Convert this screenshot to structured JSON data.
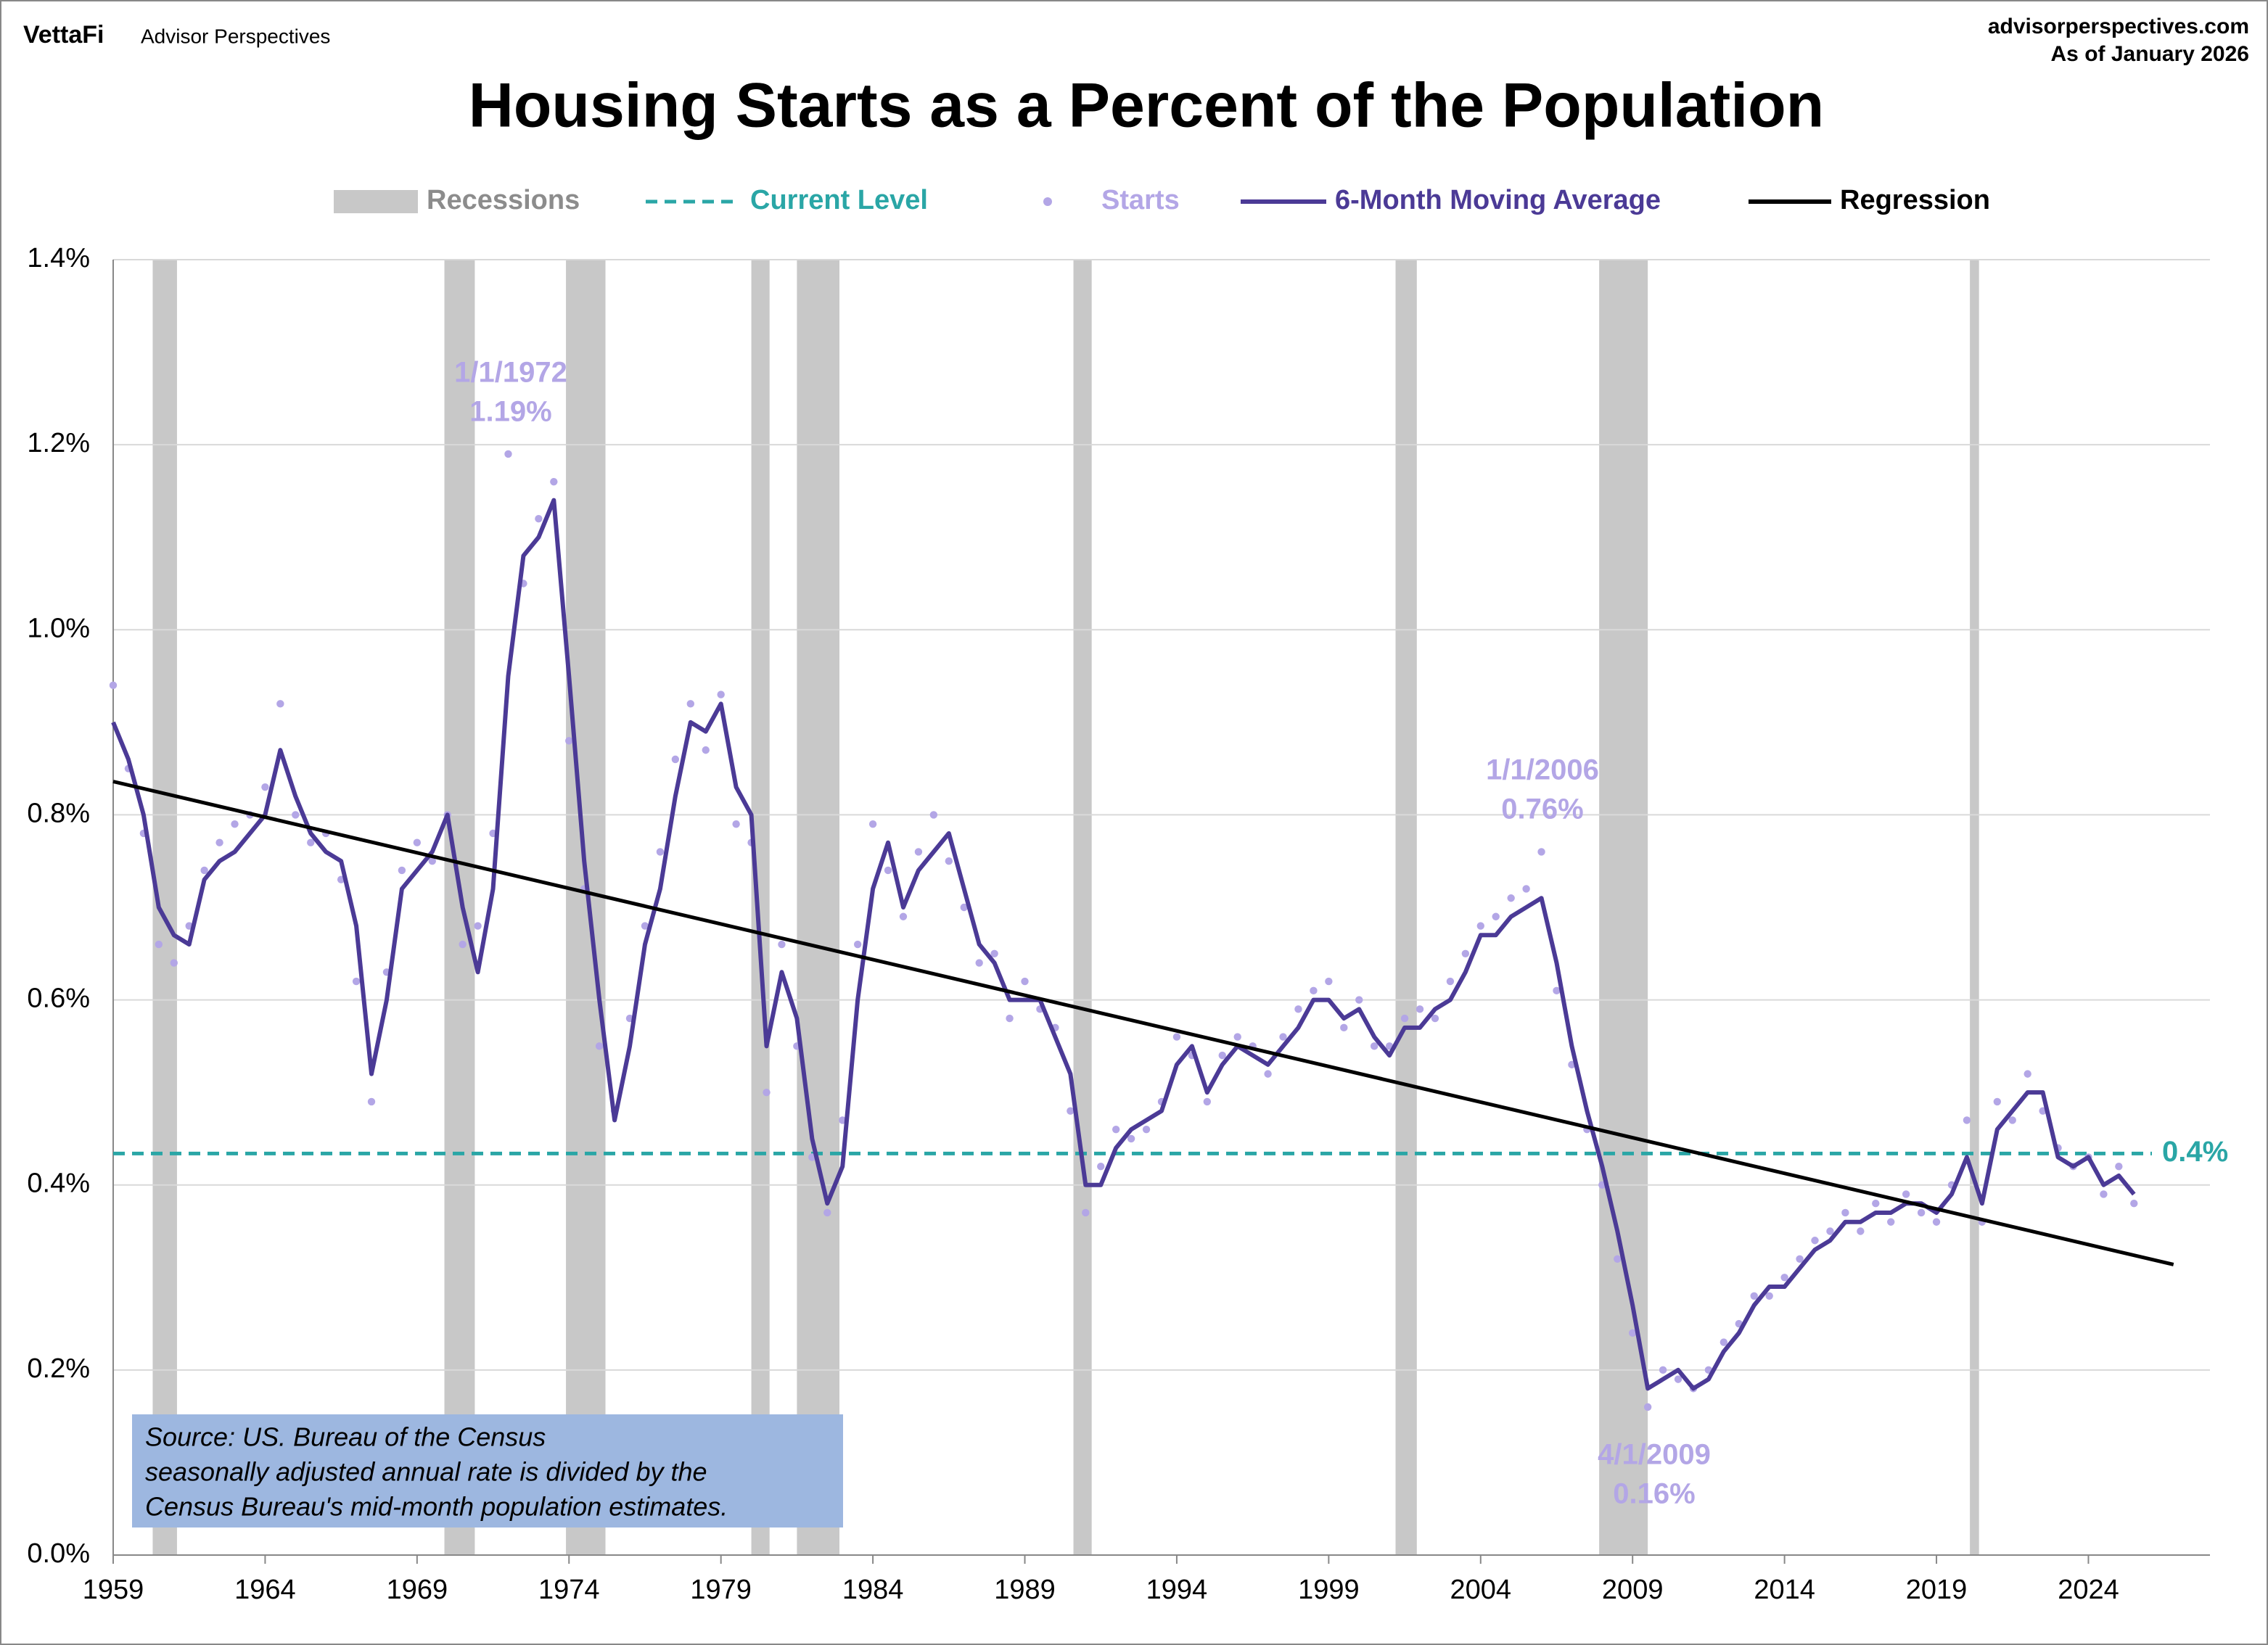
{
  "header": {
    "brand": "VettaFi",
    "site_name": "Advisor Perspectives",
    "url": "advisorperspectives.com",
    "as_of": "As of January 2026"
  },
  "chart_data": {
    "type": "line",
    "title": "Housing Starts as a Percent of the Population",
    "x": [
      1959,
      1959.5,
      1960,
      1960.5,
      1961,
      1961.5,
      1962,
      1962.5,
      1963,
      1963.5,
      1964,
      1964.5,
      1965,
      1965.5,
      1966,
      1966.5,
      1967,
      1967.5,
      1968,
      1968.5,
      1969,
      1969.5,
      1970,
      1970.5,
      1971,
      1971.5,
      1972,
      1972.5,
      1973,
      1973.5,
      1974,
      1974.5,
      1975,
      1975.5,
      1976,
      1976.5,
      1977,
      1977.5,
      1978,
      1978.5,
      1979,
      1979.5,
      1980,
      1980.5,
      1981,
      1981.5,
      1982,
      1982.5,
      1983,
      1983.5,
      1984,
      1984.5,
      1985,
      1985.5,
      1986,
      1986.5,
      1987,
      1987.5,
      1988,
      1988.5,
      1989,
      1989.5,
      1990,
      1990.5,
      1991,
      1991.5,
      1992,
      1992.5,
      1993,
      1993.5,
      1994,
      1994.5,
      1995,
      1995.5,
      1996,
      1996.5,
      1997,
      1997.5,
      1998,
      1998.5,
      1999,
      1999.5,
      2000,
      2000.5,
      2001,
      2001.5,
      2002,
      2002.5,
      2003,
      2003.5,
      2004,
      2004.5,
      2005,
      2005.5,
      2006,
      2006.5,
      2007,
      2007.5,
      2008,
      2008.5,
      2009,
      2009.5,
      2010,
      2010.5,
      2011,
      2011.5,
      2012,
      2012.5,
      2013,
      2013.5,
      2014,
      2014.5,
      2015,
      2015.5,
      2016,
      2016.5,
      2017,
      2017.5,
      2018,
      2018.5,
      2019,
      2019.5,
      2020,
      2020.5,
      2021,
      2021.5,
      2022,
      2022.5,
      2023,
      2023.5,
      2024,
      2024.5,
      2025,
      2025.5
    ],
    "series": [
      {
        "name": "Starts",
        "color": "#b3a6e6",
        "marker": "dot",
        "values": [
          0.94,
          0.85,
          0.78,
          0.66,
          0.64,
          0.68,
          0.74,
          0.77,
          0.79,
          0.8,
          0.83,
          0.92,
          0.8,
          0.77,
          0.78,
          0.73,
          0.62,
          0.49,
          0.63,
          0.74,
          0.77,
          0.75,
          0.8,
          0.66,
          0.68,
          0.78,
          1.19,
          1.05,
          1.12,
          1.16,
          0.88,
          0.72,
          0.55,
          0.48,
          0.58,
          0.68,
          0.76,
          0.86,
          0.92,
          0.87,
          0.93,
          0.79,
          0.77,
          0.5,
          0.66,
          0.55,
          0.43,
          0.37,
          0.47,
          0.66,
          0.79,
          0.74,
          0.69,
          0.76,
          0.8,
          0.75,
          0.7,
          0.64,
          0.65,
          0.58,
          0.62,
          0.59,
          0.57,
          0.48,
          0.37,
          0.42,
          0.46,
          0.45,
          0.46,
          0.49,
          0.56,
          0.54,
          0.49,
          0.54,
          0.56,
          0.55,
          0.52,
          0.56,
          0.59,
          0.61,
          0.62,
          0.57,
          0.6,
          0.55,
          0.55,
          0.58,
          0.59,
          0.58,
          0.62,
          0.65,
          0.68,
          0.69,
          0.71,
          0.72,
          0.76,
          0.61,
          0.53,
          0.46,
          0.4,
          0.32,
          0.24,
          0.16,
          0.2,
          0.19,
          0.18,
          0.2,
          0.23,
          0.25,
          0.28,
          0.28,
          0.3,
          0.32,
          0.34,
          0.35,
          0.37,
          0.35,
          0.38,
          0.36,
          0.39,
          0.37,
          0.36,
          0.4,
          0.47,
          0.36,
          0.49,
          0.47,
          0.52,
          0.48,
          0.44,
          0.42,
          0.43,
          0.39,
          0.42,
          0.38
        ]
      },
      {
        "name": "6-Month Moving Average",
        "color": "#4b3a96",
        "values": [
          0.9,
          0.86,
          0.8,
          0.7,
          0.67,
          0.66,
          0.73,
          0.75,
          0.76,
          0.78,
          0.8,
          0.87,
          0.82,
          0.78,
          0.76,
          0.75,
          0.68,
          0.52,
          0.6,
          0.72,
          0.74,
          0.76,
          0.8,
          0.7,
          0.63,
          0.72,
          0.95,
          1.08,
          1.1,
          1.14,
          0.95,
          0.75,
          0.6,
          0.47,
          0.55,
          0.66,
          0.72,
          0.82,
          0.9,
          0.89,
          0.92,
          0.83,
          0.8,
          0.55,
          0.63,
          0.58,
          0.45,
          0.38,
          0.42,
          0.6,
          0.72,
          0.77,
          0.7,
          0.74,
          0.76,
          0.78,
          0.72,
          0.66,
          0.64,
          0.6,
          0.6,
          0.6,
          0.56,
          0.52,
          0.4,
          0.4,
          0.44,
          0.46,
          0.47,
          0.48,
          0.53,
          0.55,
          0.5,
          0.53,
          0.55,
          0.54,
          0.53,
          0.55,
          0.57,
          0.6,
          0.6,
          0.58,
          0.59,
          0.56,
          0.54,
          0.57,
          0.57,
          0.59,
          0.6,
          0.63,
          0.67,
          0.67,
          0.69,
          0.7,
          0.71,
          0.64,
          0.55,
          0.48,
          0.42,
          0.35,
          0.27,
          0.18,
          0.19,
          0.2,
          0.18,
          0.19,
          0.22,
          0.24,
          0.27,
          0.29,
          0.29,
          0.31,
          0.33,
          0.34,
          0.36,
          0.36,
          0.37,
          0.37,
          0.38,
          0.38,
          0.37,
          0.39,
          0.43,
          0.38,
          0.46,
          0.48,
          0.5,
          0.5,
          0.43,
          0.42,
          0.43,
          0.4,
          0.41,
          0.39
        ]
      }
    ],
    "regression": {
      "name": "Regression",
      "color": "#000000",
      "x": [
        1959,
        2026.8
      ],
      "values": [
        0.836,
        0.314
      ]
    },
    "current_level": {
      "name": "Current Level",
      "color": "#2aa6a6",
      "value": 0.434,
      "label": "0.4%"
    },
    "recessions": {
      "name": "Recessions",
      "color": "#c8c8c8",
      "ranges": [
        [
          1960.3,
          1961.1
        ],
        [
          1969.9,
          1970.9
        ],
        [
          1973.9,
          1975.2
        ],
        [
          1980.0,
          1980.6
        ],
        [
          1981.5,
          1982.9
        ],
        [
          1990.6,
          1991.2
        ],
        [
          2001.2,
          2001.9
        ],
        [
          2007.9,
          2009.5
        ],
        [
          2020.1,
          2020.4
        ]
      ]
    },
    "xlim": [
      1959,
      2028
    ],
    "ylim": [
      0,
      1.4
    ],
    "xticks": [
      1959,
      1964,
      1969,
      1974,
      1979,
      1984,
      1989,
      1994,
      1999,
      2004,
      2009,
      2014,
      2019,
      2024
    ],
    "yticks": [
      {
        "value": 0,
        "label": "0.0%"
      },
      {
        "value": 0.2,
        "label": "0.2%"
      },
      {
        "value": 0.4,
        "label": "0.4%"
      },
      {
        "value": 0.6,
        "label": "0.6%"
      },
      {
        "value": 0.8,
        "label": "0.8%"
      },
      {
        "value": 1.0,
        "label": "1.0%"
      },
      {
        "value": 1.2,
        "label": "1.2%"
      },
      {
        "value": 1.4,
        "label": "1.4%"
      }
    ],
    "grid": true,
    "annotations": [
      {
        "lines": [
          "1/1/1972",
          "1.19%"
        ]
      },
      {
        "lines": [
          "1/1/2006",
          "0.76%"
        ]
      },
      {
        "lines": [
          "4/1/2009",
          "0.16%"
        ]
      }
    ],
    "source": [
      "Source: US. Bureau of the Census",
      "seasonally adjusted annual rate is divided by the",
      "Census Bureau's mid-month population estimates."
    ]
  }
}
